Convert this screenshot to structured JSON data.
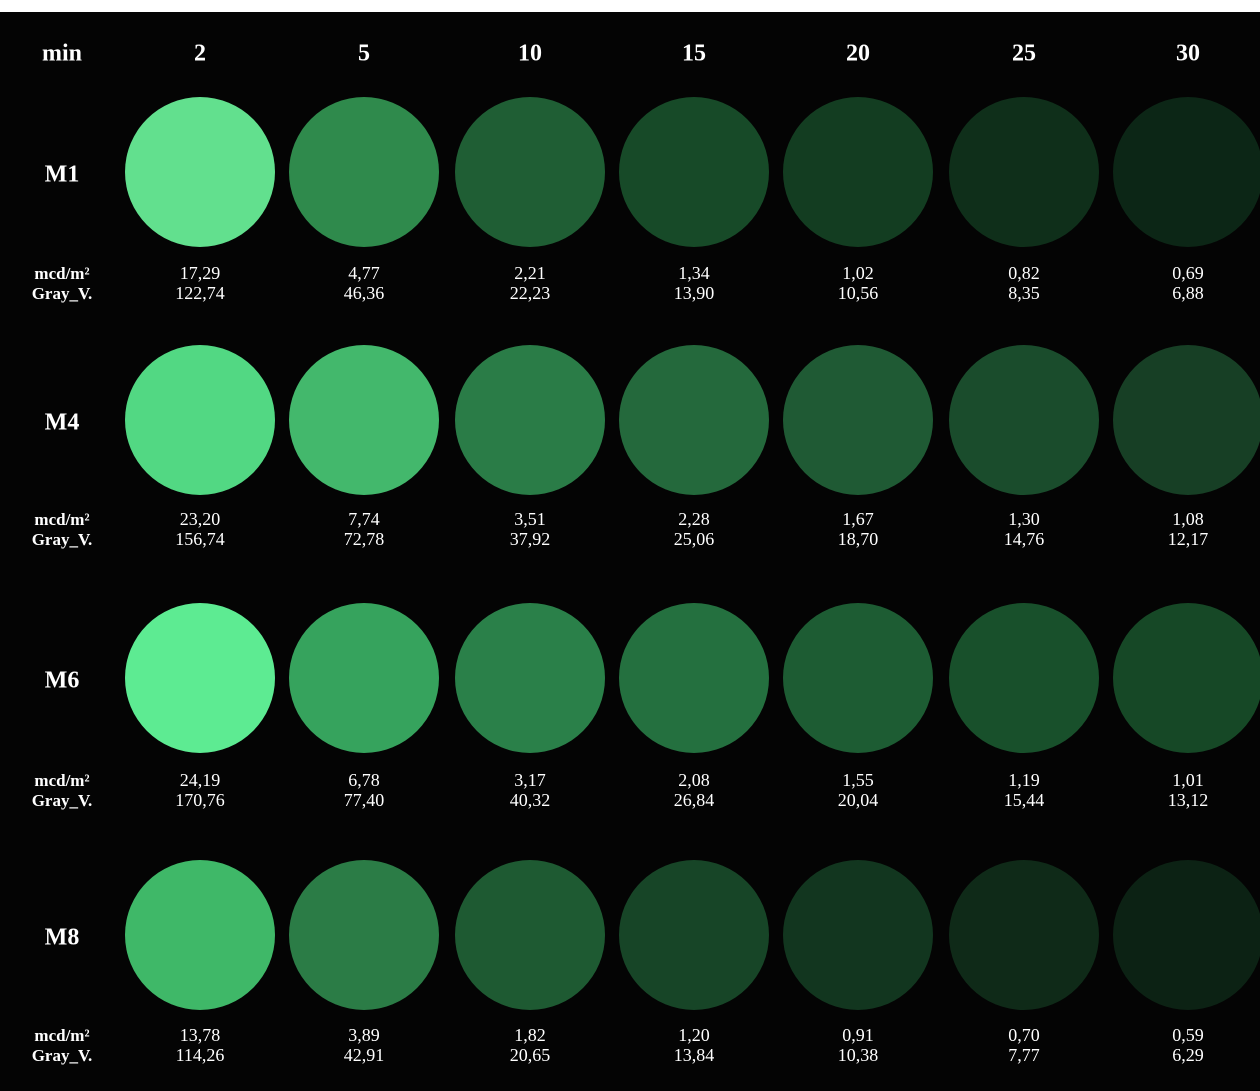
{
  "header": {
    "label": "min",
    "columns": [
      "2",
      "5",
      "10",
      "15",
      "20",
      "25",
      "30"
    ]
  },
  "measure_labels": {
    "luminance": "mcd/m²",
    "gray": "Gray_V."
  },
  "rows": [
    {
      "label": "M1",
      "luminance": [
        "17,29",
        "4,77",
        "2,21",
        "1,34",
        "1,02",
        "0,82",
        "0,69"
      ],
      "gray": [
        "122,74",
        "46,36",
        "22,23",
        "13,90",
        "10,56",
        "8,35",
        "6,88"
      ]
    },
    {
      "label": "M4",
      "luminance": [
        "23,20",
        "7,74",
        "3,51",
        "2,28",
        "1,67",
        "1,30",
        "1,08"
      ],
      "gray": [
        "156,74",
        "72,78",
        "37,92",
        "25,06",
        "18,70",
        "14,76",
        "12,17"
      ]
    },
    {
      "label": "M6",
      "luminance": [
        "24,19",
        "6,78",
        "3,17",
        "2,08",
        "1,55",
        "1,19",
        "1,01"
      ],
      "gray": [
        "170,76",
        "77,40",
        "40,32",
        "26,84",
        "20,04",
        "15,44",
        "13,12"
      ]
    },
    {
      "label": "M8",
      "luminance": [
        "13,78",
        "3,89",
        "1,82",
        "1,20",
        "0,91",
        "0,70",
        "0,59"
      ],
      "gray": [
        "114,26",
        "42,91",
        "20,65",
        "13,84",
        "10,38",
        "7,77",
        "6,29"
      ]
    }
  ]
}
